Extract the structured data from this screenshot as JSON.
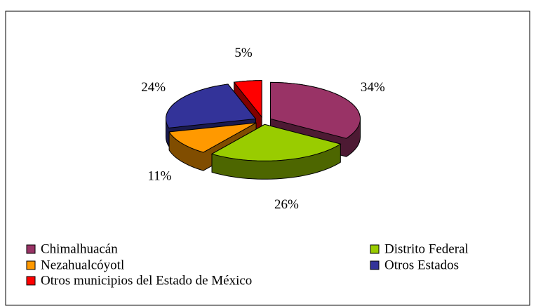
{
  "chart_data": {
    "type": "pie",
    "style": "3d-exploded",
    "categories": [
      "Chimalhuacán",
      "Distrito Federal",
      "Nezahualcóyotl",
      "Otros Estados",
      "Otros municipios del Estado de México"
    ],
    "values": [
      34,
      26,
      11,
      24,
      5
    ],
    "value_labels": [
      "34%",
      "26%",
      "11%",
      "24%",
      "5%"
    ],
    "colors": [
      "#993366",
      "#99cc00",
      "#ff9900",
      "#333399",
      "#ff0000"
    ],
    "legend": "bottom"
  }
}
